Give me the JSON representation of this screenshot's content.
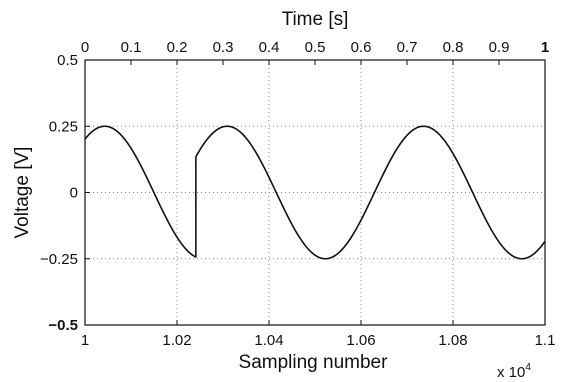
{
  "chart_data": {
    "type": "line",
    "xlabel": "Sampling number",
    "x_multiplier_label": "x 10",
    "x_multiplier_exponent": "4",
    "ylabel": "Voltage [V]",
    "top_xlabel": "Time [s]",
    "xlim": [
      1.0,
      1.1
    ],
    "ylim": [
      -0.5,
      0.5
    ],
    "grid": true,
    "x_ticks": [
      {
        "value": 1.0,
        "label": "1"
      },
      {
        "value": 1.02,
        "label": "1.02"
      },
      {
        "value": 1.04,
        "label": "1.04"
      },
      {
        "value": 1.06,
        "label": "1.06"
      },
      {
        "value": 1.08,
        "label": "1.08"
      },
      {
        "value": 1.1,
        "label": "1.1"
      }
    ],
    "y_ticks": [
      {
        "value": 0.5,
        "label": "0.5"
      },
      {
        "value": 0.25,
        "label": "0.25"
      },
      {
        "value": 0,
        "label": "0"
      },
      {
        "value": -0.25,
        "label": "−0.25"
      },
      {
        "value": -0.5,
        "label": "−0.5"
      }
    ],
    "top_ticks": [
      {
        "value": 0,
        "label": "0",
        "bold": false
      },
      {
        "value": 0.1,
        "label": "0.1",
        "bold": false
      },
      {
        "value": 0.2,
        "label": "0.2",
        "bold": false
      },
      {
        "value": 0.3,
        "label": "0.3",
        "bold": false
      },
      {
        "value": 0.4,
        "label": "0.4",
        "bold": false
      },
      {
        "value": 0.5,
        "label": "0.5",
        "bold": false
      },
      {
        "value": 0.6,
        "label": "0.6",
        "bold": false
      },
      {
        "value": 0.7,
        "label": "0.7",
        "bold": false
      },
      {
        "value": 0.8,
        "label": "0.8",
        "bold": false
      },
      {
        "value": 0.9,
        "label": "0.9",
        "bold": false
      },
      {
        "value": 1,
        "label": "1",
        "bold": true
      }
    ],
    "top_xlim": [
      0,
      1
    ],
    "line_color": "#111111",
    "grid_color": "#888888",
    "series": [
      {
        "segments": [
          {
            "x_range": [
              1.0,
              1.0241
            ],
            "amplitude": 0.25,
            "period": 0.0427,
            "peak_x": 1.0043
          },
          {
            "x_range": [
              1.0241,
              1.1
            ],
            "amplitude": 0.25,
            "period": 0.0427,
            "peak_x": 1.0309
          }
        ]
      }
    ]
  }
}
